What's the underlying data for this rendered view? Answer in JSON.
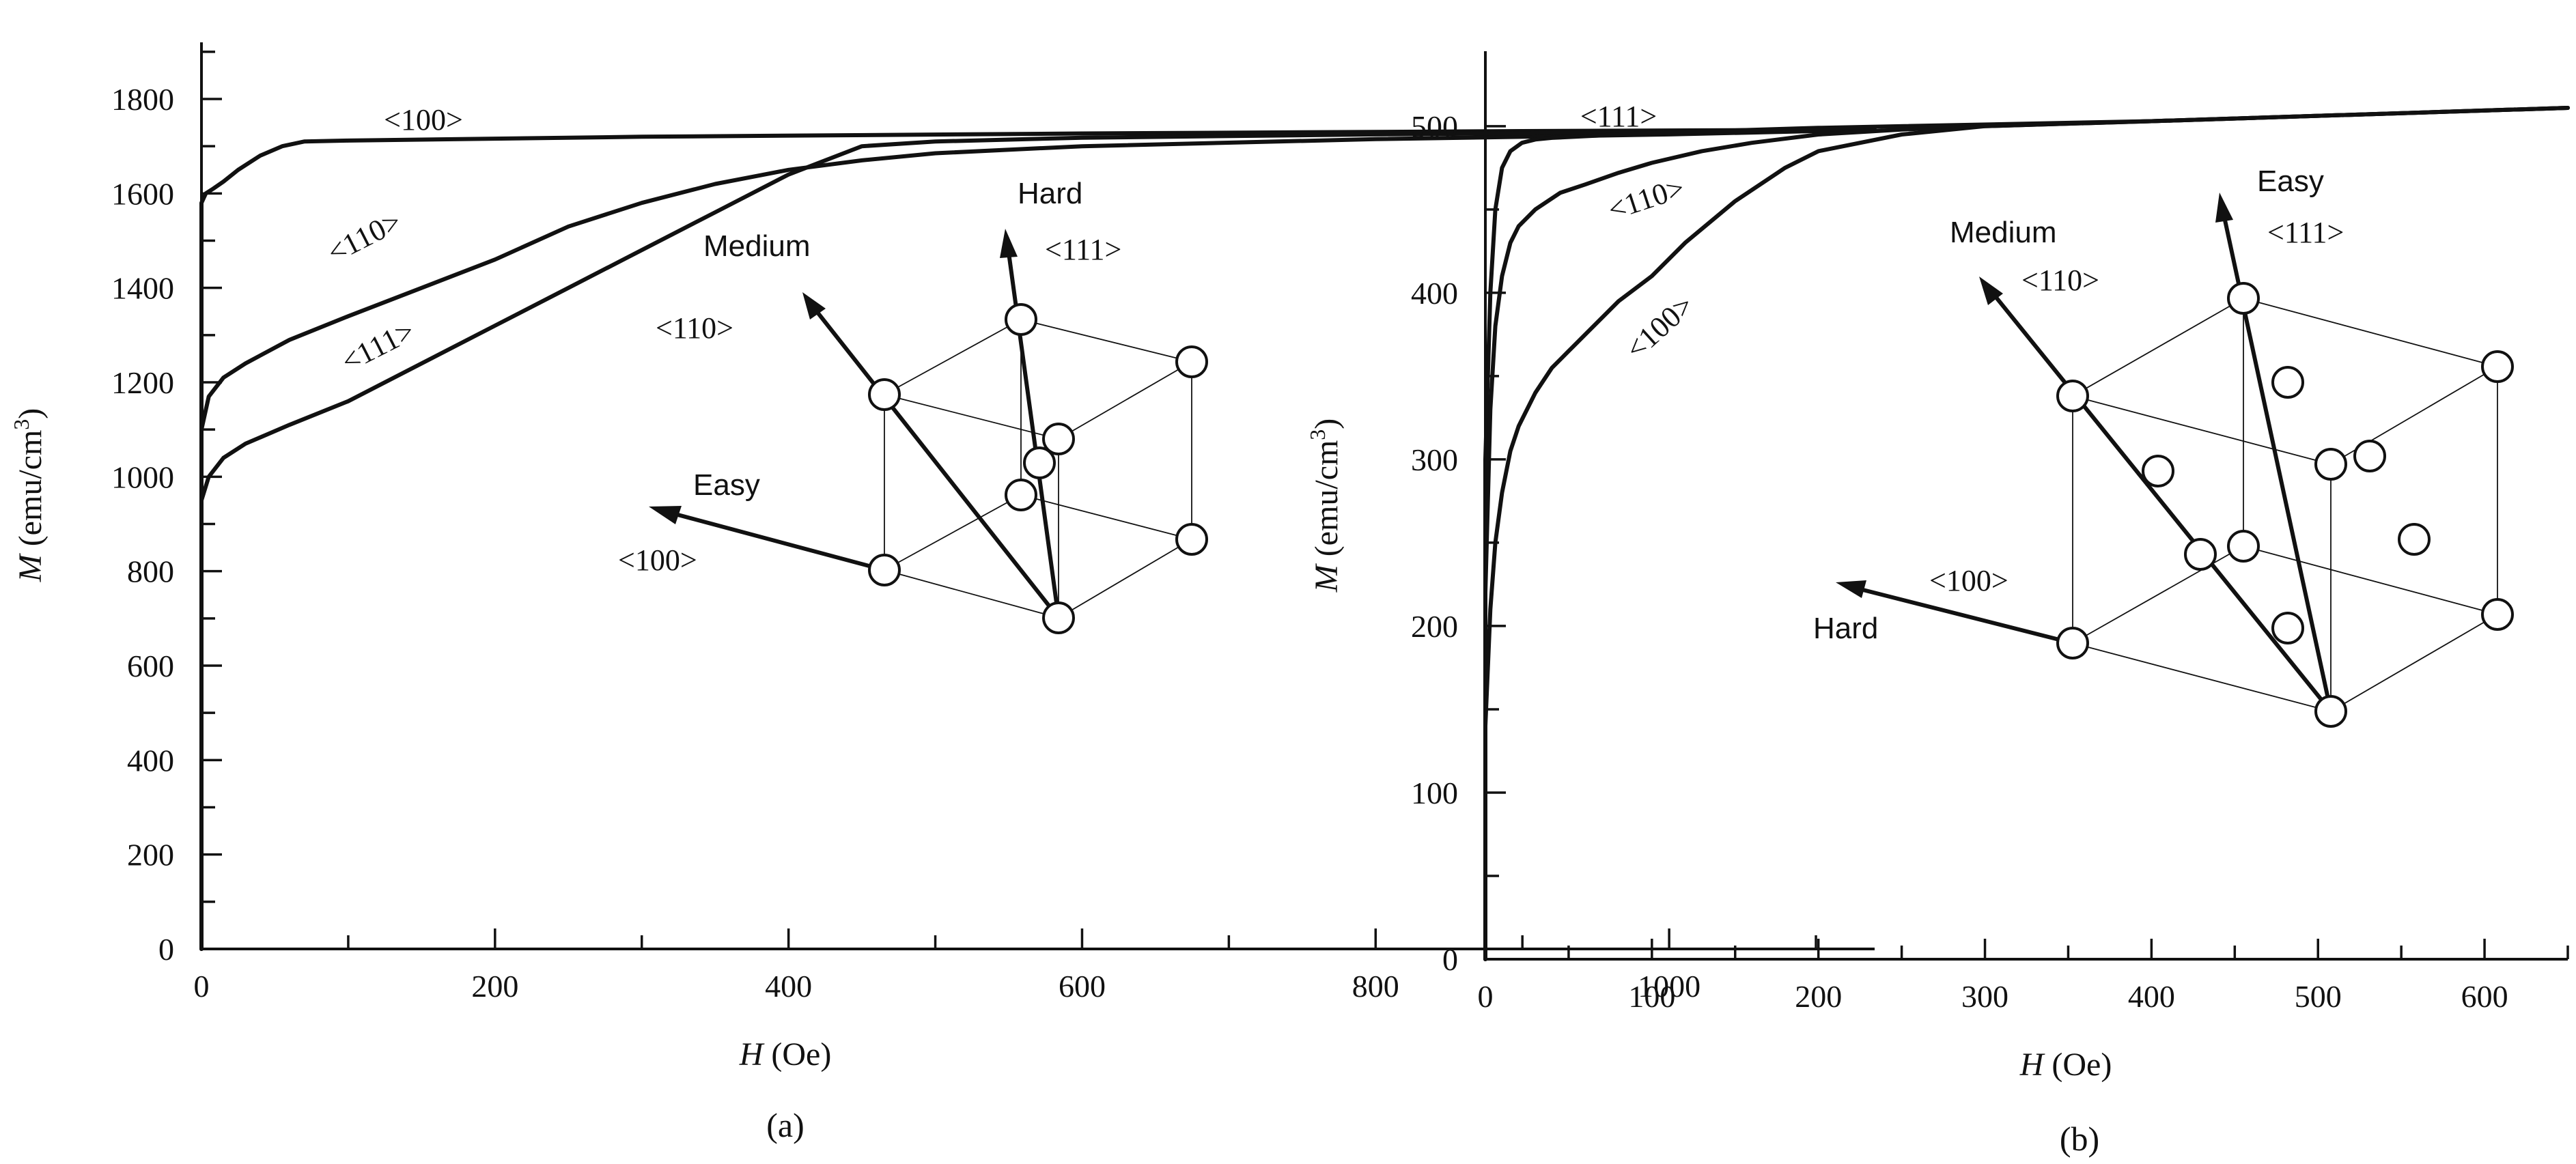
{
  "chart_data": [
    {
      "type": "line",
      "panel_label": "(a)",
      "xlabel_var": "H",
      "xlabel_unit": "(Oe)",
      "ylabel_var": "M",
      "ylabel_unit": "(emu/cm",
      "ylabel_sup": "3",
      "ylabel_close": ")",
      "xlim": [
        0,
        1140
      ],
      "ylim": [
        0,
        1920
      ],
      "xticks": [
        0,
        200,
        400,
        600,
        800,
        1000
      ],
      "yticks": [
        0,
        200,
        400,
        600,
        800,
        1000,
        1200,
        1400,
        1600,
        1800
      ],
      "series": [
        {
          "name": "<100>",
          "x": [
            0,
            0,
            3,
            8,
            15,
            25,
            40,
            55,
            70,
            100,
            300,
            600,
            900,
            1140
          ],
          "y": [
            0,
            1580,
            1600,
            1610,
            1625,
            1650,
            1680,
            1700,
            1710,
            1712,
            1720,
            1727,
            1732,
            1735
          ]
        },
        {
          "name": "<110>",
          "x": [
            0,
            0,
            5,
            15,
            30,
            60,
            100,
            150,
            200,
            250,
            300,
            350,
            400,
            450,
            500,
            600,
            800,
            1000,
            1140
          ],
          "y": [
            0,
            1100,
            1170,
            1210,
            1240,
            1290,
            1340,
            1400,
            1460,
            1530,
            1580,
            1620,
            1650,
            1670,
            1685,
            1700,
            1715,
            1725,
            1735
          ]
        },
        {
          "name": "<111>",
          "x": [
            0,
            0,
            5,
            15,
            30,
            60,
            100,
            150,
            200,
            250,
            300,
            350,
            400,
            450,
            500,
            600,
            800,
            1000,
            1140
          ],
          "y": [
            0,
            950,
            1000,
            1040,
            1070,
            1110,
            1160,
            1240,
            1320,
            1400,
            1480,
            1560,
            1640,
            1700,
            1710,
            1718,
            1725,
            1730,
            1735
          ]
        }
      ],
      "annotations": {
        "dir_100": "<100>",
        "dir_110": "<110>",
        "dir_111": "<111>",
        "easy": "Easy",
        "medium": "Medium",
        "hard": "Hard",
        "inset_100": "<100>",
        "inset_110": "<110>",
        "inset_111": "<111>"
      }
    },
    {
      "type": "line",
      "panel_label": "(b)",
      "xlabel_var": "H",
      "xlabel_unit": "(Oe)",
      "ylabel_var": "M",
      "ylabel_unit": "(emu/cm",
      "ylabel_sup": "3",
      "ylabel_close": ")",
      "xlim": [
        0,
        650
      ],
      "ylim": [
        0,
        545
      ],
      "xticks": [
        0,
        100,
        200,
        300,
        400,
        500,
        600
      ],
      "yticks": [
        0,
        100,
        200,
        300,
        400,
        500
      ],
      "series": [
        {
          "name": "<111>",
          "x": [
            0,
            0,
            3,
            6,
            10,
            15,
            22,
            30,
            40,
            60,
            100,
            200,
            400,
            650
          ],
          "y": [
            0,
            300,
            400,
            450,
            475,
            485,
            490,
            492,
            493,
            494,
            496,
            499,
            503,
            511
          ]
        },
        {
          "name": "<110>",
          "x": [
            0,
            0,
            3,
            6,
            10,
            15,
            20,
            30,
            45,
            60,
            80,
            100,
            130,
            160,
            200,
            250,
            300,
            400,
            650
          ],
          "y": [
            0,
            220,
            330,
            380,
            410,
            430,
            440,
            450,
            460,
            465,
            472,
            478,
            485,
            490,
            495,
            498,
            500,
            503,
            511
          ]
        },
        {
          "name": "<100>",
          "x": [
            0,
            0,
            3,
            6,
            10,
            15,
            20,
            30,
            40,
            50,
            60,
            80,
            100,
            120,
            150,
            180,
            200,
            250,
            300,
            400,
            650
          ],
          "y": [
            0,
            140,
            210,
            250,
            280,
            305,
            320,
            340,
            355,
            365,
            375,
            395,
            410,
            430,
            455,
            475,
            485,
            495,
            500,
            503,
            511
          ]
        }
      ],
      "annotations": {
        "dir_111": "<111>",
        "dir_110": "<110>",
        "dir_100": "<100>",
        "easy": "Easy",
        "medium": "Medium",
        "hard": "Hard",
        "inset_111": "<111>",
        "inset_110": "<110>",
        "inset_100": "<100>"
      }
    }
  ]
}
